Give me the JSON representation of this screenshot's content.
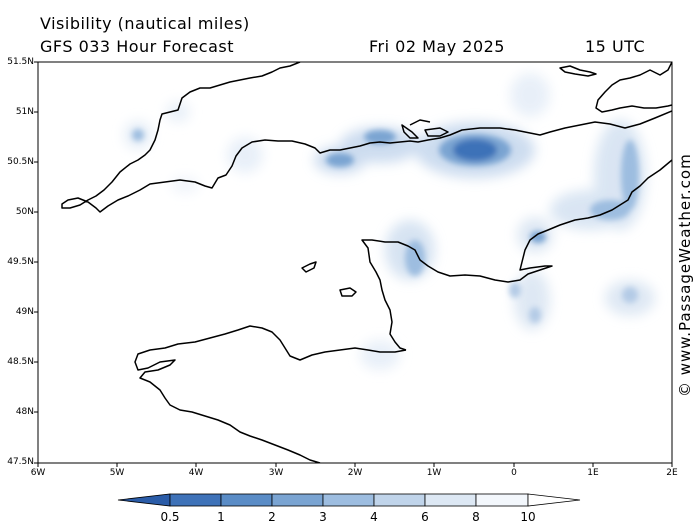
{
  "header": {
    "title": "Visibility (nautical miles)",
    "subtitle": "GFS 033 Hour Forecast",
    "date": "Fri 02 May 2025",
    "time": "15 UTC"
  },
  "map": {
    "lat_labels": [
      "51.5N",
      "51N",
      "50.5N",
      "50N",
      "49.5N",
      "49N",
      "48.5N",
      "48N",
      "47.5N"
    ],
    "lon_labels": [
      "6W",
      "5W",
      "4W",
      "3W",
      "2W",
      "1W",
      "0",
      "1E",
      "2E"
    ],
    "land_color": "#000000",
    "sea_color": "#ffffff",
    "fog_color": "#2f5fae"
  },
  "watermark": "© www.PassageWeather.com",
  "colorbar": {
    "labels": [
      "0.5",
      "1",
      "2",
      "3",
      "4",
      "6",
      "8",
      "10"
    ],
    "colors": [
      "#2a5ca8",
      "#3e72b8",
      "#5a8cc6",
      "#7aa4d2",
      "#9dbde0",
      "#c0d4ea",
      "#dde8f4",
      "#f3f7fc",
      "#ffffff"
    ]
  }
}
